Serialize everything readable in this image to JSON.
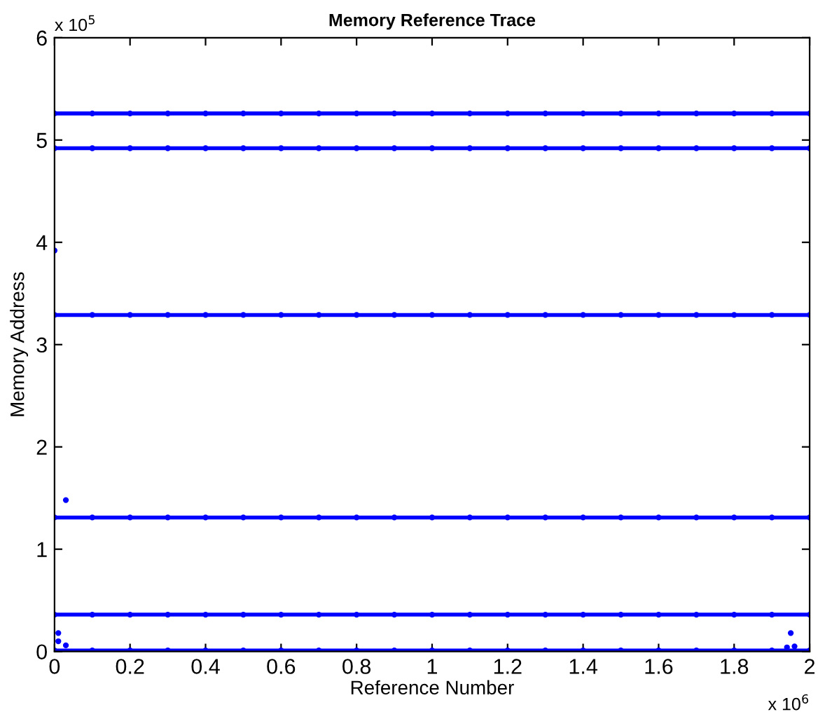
{
  "chart_data": {
    "type": "line",
    "title": "Memory Reference Trace",
    "xlabel": "Reference Number",
    "ylabel": "Memory Address",
    "annotations": [
      "x 10$^{5}$",
      "x 10$^{6}$"
    ],
    "x": [
      0,
      0.1,
      0.2,
      0.3,
      0.4,
      0.5,
      0.6,
      0.7,
      0.8,
      0.9,
      1.0,
      1.1,
      1.2,
      1.3,
      1.4,
      1.5,
      1.6,
      1.7,
      1.8,
      1.9,
      2.0
    ],
    "series": [
      {
        "color": "#0000ff",
        "values": [
          5.26,
          5.26,
          5.26,
          5.26,
          5.26,
          5.26,
          5.26,
          5.26,
          5.26,
          5.26,
          5.26,
          5.26,
          5.26,
          5.26,
          5.26,
          5.26,
          5.26,
          5.26,
          5.26,
          5.26,
          5.26
        ]
      },
      {
        "color": "#0000ff",
        "values": [
          4.92,
          4.92,
          4.92,
          4.92,
          4.92,
          4.92,
          4.92,
          4.92,
          4.92,
          4.92,
          4.92,
          4.92,
          4.92,
          4.92,
          4.92,
          4.92,
          4.92,
          4.92,
          4.92,
          4.92,
          4.92
        ]
      },
      {
        "color": "#0000ff",
        "values": [
          3.29,
          3.29,
          3.29,
          3.29,
          3.29,
          3.29,
          3.29,
          3.29,
          3.29,
          3.29,
          3.29,
          3.29,
          3.29,
          3.29,
          3.29,
          3.29,
          3.29,
          3.29,
          3.29,
          3.29,
          3.29
        ]
      },
      {
        "color": "#0000ff",
        "values": [
          1.31,
          1.31,
          1.31,
          1.31,
          1.31,
          1.31,
          1.31,
          1.31,
          1.31,
          1.31,
          1.31,
          1.31,
          1.31,
          1.31,
          1.31,
          1.31,
          1.31,
          1.31,
          1.31,
          1.31,
          1.31
        ]
      },
      {
        "color": "#0000ff",
        "values": [
          0.36,
          0.36,
          0.36,
          0.36,
          0.36,
          0.36,
          0.36,
          0.36,
          0.36,
          0.36,
          0.36,
          0.36,
          0.36,
          0.36,
          0.36,
          0.36,
          0.36,
          0.36,
          0.36,
          0.36,
          0.36
        ]
      },
      {
        "color": "#0000ff",
        "values": [
          0.01,
          0.01,
          0.01,
          0.01,
          0.01,
          0.01,
          0.01,
          0.01,
          0.01,
          0.01,
          0.01,
          0.01,
          0.01,
          0.01,
          0.01,
          0.01,
          0.01,
          0.01,
          0.01,
          0.01,
          0.01
        ]
      },
      {
        "type": "scatter",
        "color": "#0000ff",
        "x": [
          0,
          0.03,
          0.01,
          0.01,
          0.03,
          1.95,
          1.94,
          1.96
        ],
        "values": [
          3.92,
          1.48,
          0.18,
          0.1,
          0.06,
          0.18,
          0.04,
          0.05
        ]
      }
    ],
    "marker": "circle",
    "xlim": [
      0,
      2
    ],
    "ylim": [
      0,
      6
    ],
    "xticks": [
      0,
      0.2,
      0.4,
      0.6,
      0.8,
      1,
      1.2,
      1.4,
      1.6,
      1.8,
      2
    ],
    "yticks": [
      0,
      1,
      2,
      3,
      4,
      5,
      6
    ]
  }
}
